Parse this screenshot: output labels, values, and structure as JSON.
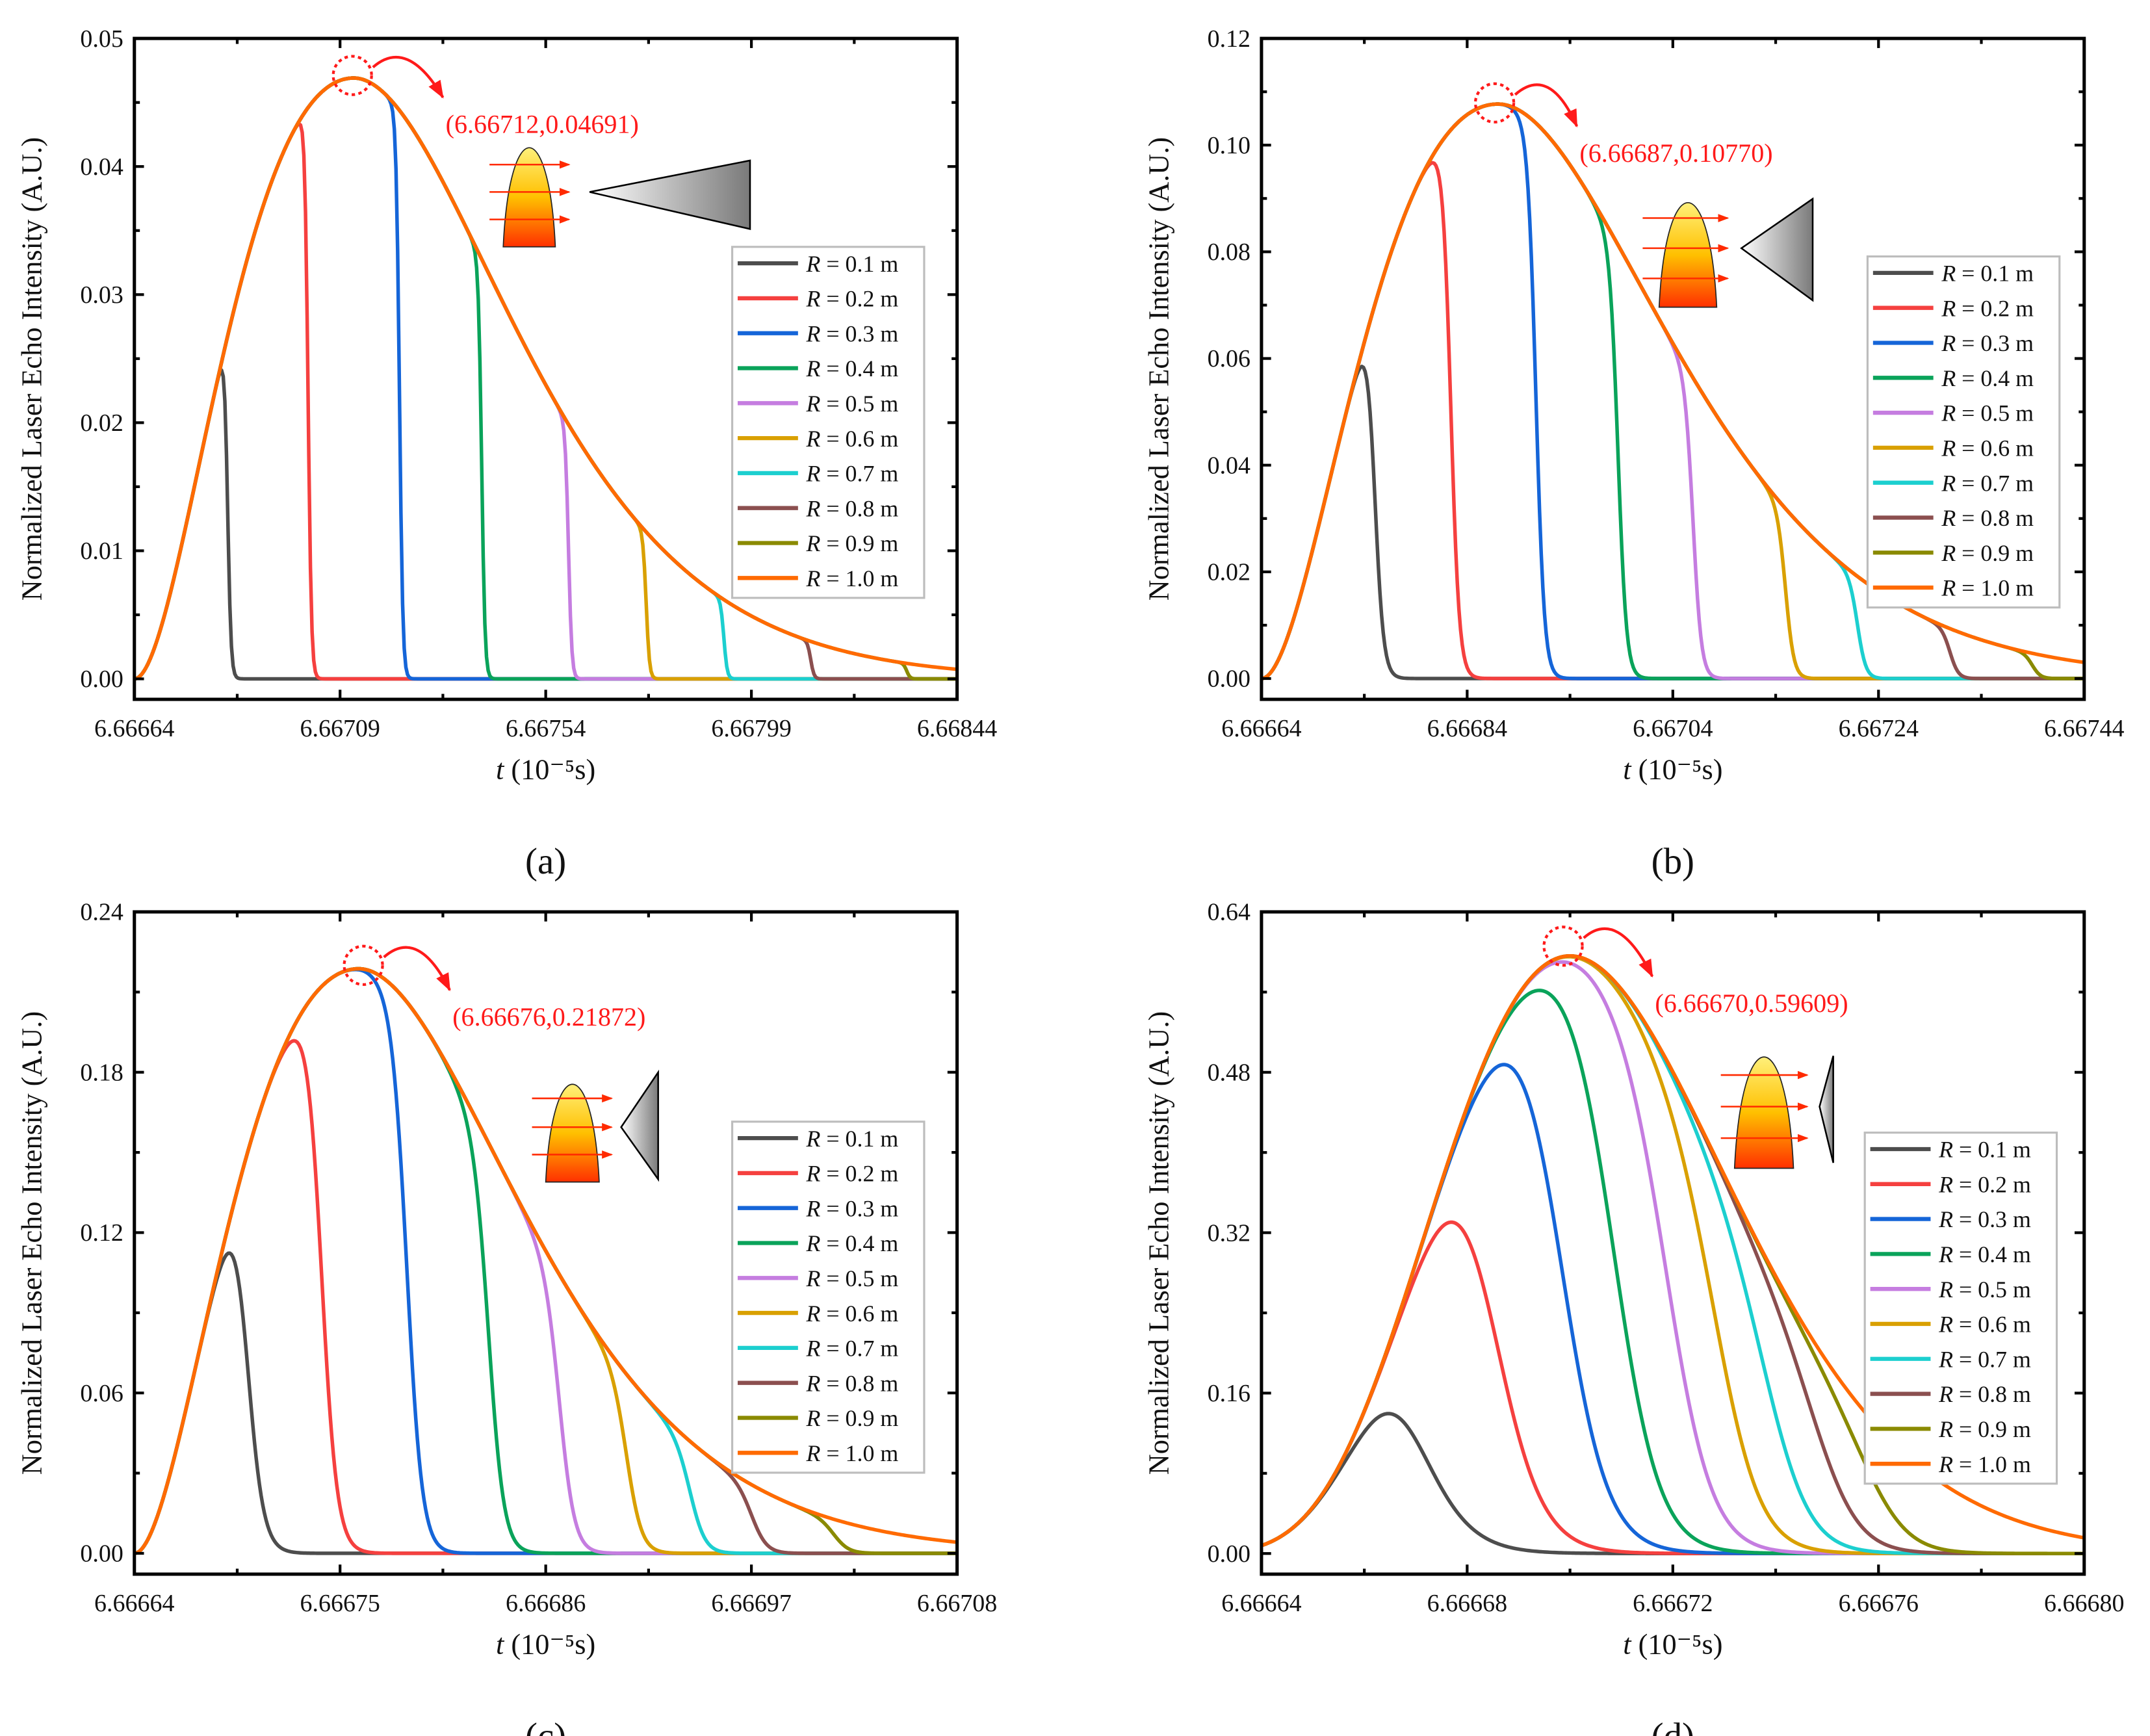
{
  "chart_data": [
    {
      "id": "a",
      "type": "line",
      "panel_label": "(a)",
      "xlabel_var": "t",
      "xlabel_unit": "(10⁻⁵s)",
      "ylabel": "Normalized Laser Echo Intensity (A.U.)",
      "xlim": [
        6.66664,
        6.66844
      ],
      "ylim": [
        -0.0016,
        0.05
      ],
      "xticks": [
        "6.66664",
        "6.66709",
        "6.66754",
        "6.66799",
        "6.66844"
      ],
      "yticks": [
        "0.00",
        "0.01",
        "0.02",
        "0.03",
        "0.04",
        "0.05"
      ],
      "ytick_values": [
        0,
        0.01,
        0.02,
        0.03,
        0.04,
        0.05
      ],
      "annotation": "(6.66712,0.04691)",
      "peak": {
        "t": 6.66712,
        "value": 0.04691
      },
      "pulse": {
        "start": 6.66664,
        "rise_shape": 2,
        "fall_shape": 2.9
      },
      "drop_width": 8e-06,
      "series": [
        {
          "name": "R = 0.1 m",
          "color": "#4d4d4d",
          "drop_t": 6.666844
        },
        {
          "name": "R = 0.2 m",
          "color": "#f5403f",
          "drop_t": 6.66702
        },
        {
          "name": "R = 0.3 m",
          "color": "#1565d8",
          "drop_t": 6.66722
        },
        {
          "name": "R = 0.4 m",
          "color": "#0aa35a",
          "drop_t": 6.6674
        },
        {
          "name": "R = 0.5 m",
          "color": "#c57de0",
          "drop_t": 6.66759
        },
        {
          "name": "R = 0.6 m",
          "color": "#d9a000",
          "drop_t": 6.66776
        },
        {
          "name": "R = 0.7 m",
          "color": "#1ccfcf",
          "drop_t": 6.66793
        },
        {
          "name": "R = 0.8 m",
          "color": "#8b4f4f",
          "drop_t": 6.66812
        },
        {
          "name": "R = 0.9 m",
          "color": "#8a8a00",
          "drop_t": 6.66833
        },
        {
          "name": "R = 1.0 m",
          "color": "#ff6a00",
          "drop_t": null
        }
      ]
    },
    {
      "id": "b",
      "type": "line",
      "panel_label": "(b)",
      "xlabel_var": "t",
      "xlabel_unit": "(10⁻⁵s)",
      "ylabel": "Normalized Laser Echo Intensity (A.U.)",
      "xlim": [
        6.66664,
        6.66744
      ],
      "ylim": [
        -0.0039,
        0.12
      ],
      "xticks": [
        "6.66664",
        "6.66684",
        "6.66704",
        "6.66724",
        "6.66744"
      ],
      "yticks": [
        "0.00",
        "0.02",
        "0.04",
        "0.06",
        "0.08",
        "0.10",
        "0.12"
      ],
      "ytick_values": [
        0,
        0.02,
        0.04,
        0.06,
        0.08,
        0.1,
        0.12
      ],
      "annotation": "(6.66687,0.10770)",
      "peak": {
        "t": 6.66687,
        "value": 0.1077
      },
      "pulse": {
        "start": 6.66664,
        "rise_shape": 2,
        "fall_shape": 2.9
      },
      "drop_width": 9e-06,
      "series": [
        {
          "name": "R = 0.1 m",
          "color": "#4d4d4d",
          "drop_t": 6.66675
        },
        {
          "name": "R = 0.2 m",
          "color": "#f5403f",
          "drop_t": 6.666824
        },
        {
          "name": "R = 0.3 m",
          "color": "#1565d8",
          "drop_t": 6.666907
        },
        {
          "name": "R = 0.4 m",
          "color": "#0aa35a",
          "drop_t": 6.666987
        },
        {
          "name": "R = 0.5 m",
          "color": "#c57de0",
          "drop_t": 6.66706
        },
        {
          "name": "R = 0.6 m",
          "color": "#d9a000",
          "drop_t": 6.66715
        },
        {
          "name": "R = 0.7 m",
          "color": "#1ccfcf",
          "drop_t": 6.66722
        },
        {
          "name": "R = 0.8 m",
          "color": "#8b4f4f",
          "drop_t": 6.66731
        },
        {
          "name": "R = 0.9 m",
          "color": "#8a8a00",
          "drop_t": 6.66739
        },
        {
          "name": "R = 1.0 m",
          "color": "#ff6a00",
          "drop_t": null
        }
      ]
    },
    {
      "id": "c",
      "type": "line",
      "panel_label": "(c)",
      "xlabel_var": "t",
      "xlabel_unit": "(10⁻⁵s)",
      "ylabel": "Normalized Laser Echo Intensity (A.U.)",
      "xlim": [
        6.66664,
        6.66708
      ],
      "ylim": [
        -0.0078,
        0.24
      ],
      "xticks": [
        "6.66664",
        "6.66675",
        "6.66686",
        "6.66697",
        "6.66708"
      ],
      "yticks": [
        "0.00",
        "0.06",
        "0.12",
        "0.18",
        "0.24"
      ],
      "ytick_values": [
        0,
        0.06,
        0.12,
        0.18,
        0.24
      ],
      "annotation": "(6.66676,0.21872)",
      "peak": {
        "t": 6.66676,
        "value": 0.21872
      },
      "pulse": {
        "start": 6.66664,
        "rise_shape": 2,
        "fall_shape": 2.9
      },
      "drop_width": 9e-06,
      "series": [
        {
          "name": "R = 0.1 m",
          "color": "#4d4d4d",
          "drop_t": 6.6667
        },
        {
          "name": "R = 0.2 m",
          "color": "#f5403f",
          "drop_t": 6.66674
        },
        {
          "name": "R = 0.3 m",
          "color": "#1565d8",
          "drop_t": 6.666786
        },
        {
          "name": "R = 0.4 m",
          "color": "#0aa35a",
          "drop_t": 6.66683
        },
        {
          "name": "R = 0.5 m",
          "color": "#c57de0",
          "drop_t": 6.666868
        },
        {
          "name": "R = 0.6 m",
          "color": "#d9a000",
          "drop_t": 6.666904
        },
        {
          "name": "R = 0.7 m",
          "color": "#1ccfcf",
          "drop_t": 6.666938
        },
        {
          "name": "R = 0.8 m",
          "color": "#8b4f4f",
          "drop_t": 6.666971
        },
        {
          "name": "R = 0.9 m",
          "color": "#8a8a00",
          "drop_t": 6.667015
        },
        {
          "name": "R = 1.0 m",
          "color": "#ff6a00",
          "drop_t": null
        }
      ]
    },
    {
      "id": "d",
      "type": "line",
      "panel_label": "(d)",
      "xlabel_var": "t",
      "xlabel_unit": "(10⁻⁵s)",
      "ylabel": "Normalized Laser Echo Intensity (A.U.)",
      "xlim": [
        6.66664,
        6.6668
      ],
      "ylim": [
        -0.0206,
        0.64
      ],
      "xticks": [
        "6.66664",
        "6.66668",
        "6.66672",
        "6.66676",
        "6.66680"
      ],
      "yticks": [
        "0.00",
        "0.16",
        "0.32",
        "0.48",
        "0.64"
      ],
      "ytick_values": [
        0,
        0.16,
        0.32,
        0.48,
        0.64
      ],
      "annotation": "(6.66670,0.59609)",
      "peak": {
        "t": 6.6667,
        "value": 0.59609
      },
      "pulse": {
        "start": 6.66661,
        "rise_shape": 10,
        "fall_shape": 10
      },
      "drop_width": 1e-05,
      "series": [
        {
          "name": "R = 0.1 m",
          "color": "#4d4d4d",
          "drop_t": 6.666668
        },
        {
          "name": "R = 0.2 m",
          "color": "#f5403f",
          "drop_t": 6.666684
        },
        {
          "name": "R = 0.3 m",
          "color": "#1565d8",
          "drop_t": 6.666698
        },
        {
          "name": "R = 0.4 m",
          "color": "#0aa35a",
          "drop_t": 6.666709
        },
        {
          "name": "R = 0.5 m",
          "color": "#c57de0",
          "drop_t": 6.66672
        },
        {
          "name": "R = 0.6 m",
          "color": "#d9a000",
          "drop_t": 6.66673
        },
        {
          "name": "R = 0.7 m",
          "color": "#1ccfcf",
          "drop_t": 6.66674
        },
        {
          "name": "R = 0.8 m",
          "color": "#8b4f4f",
          "drop_t": 6.66675
        },
        {
          "name": "R = 0.9 m",
          "color": "#8a8a00",
          "drop_t": 6.66676
        },
        {
          "name": "R = 1.0 m",
          "color": "#ff6a00",
          "drop_t": null
        }
      ]
    }
  ]
}
